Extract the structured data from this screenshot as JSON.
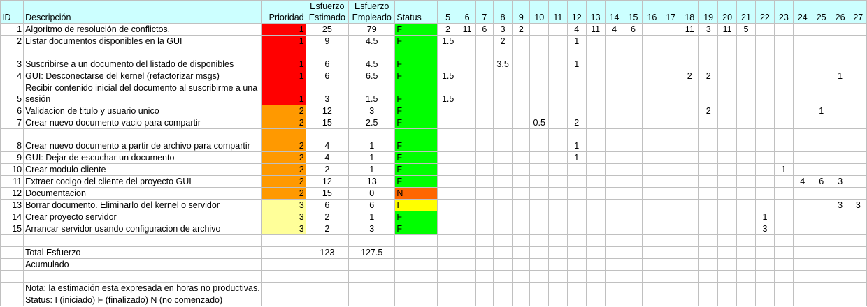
{
  "headers": {
    "id": "ID",
    "descripcion": "Descripción",
    "prioridad": "Prioridad",
    "estimado": "Esfuerzo Estimado",
    "empleado": "Esfuerzo Empleado",
    "status": "Status",
    "days": [
      "5",
      "6",
      "7",
      "8",
      "9",
      "10",
      "11",
      "12",
      "13",
      "14",
      "15",
      "16",
      "17",
      "18",
      "19",
      "20",
      "21",
      "22",
      "23",
      "24",
      "25",
      "26",
      "27"
    ]
  },
  "rows": [
    {
      "id": "1",
      "desc": "Algoritmo de resolución de conflictos.",
      "prio": "1",
      "est": "25",
      "emp": "79",
      "status": "F",
      "days": [
        "2",
        "11",
        "6",
        "3",
        "2",
        "",
        "",
        "4",
        "11",
        "4",
        "6",
        "",
        "",
        "11",
        "3",
        "11",
        "5",
        "",
        "",
        "",
        "",
        "",
        ""
      ]
    },
    {
      "id": "2",
      "desc": "Listar documentos disponibles en la GUI",
      "prio": "1",
      "est": "9",
      "emp": "4.5",
      "status": "F",
      "days": [
        "1.5",
        "",
        "",
        "2",
        "",
        "",
        "",
        "1",
        "",
        "",
        "",
        "",
        "",
        "",
        "",
        "",
        "",
        "",
        "",
        "",
        "",
        "",
        ""
      ]
    },
    {
      "id": "3",
      "desc": "Suscribirse a un documento del listado de disponibles",
      "prio": "1",
      "est": "6",
      "emp": "4.5",
      "status": "F",
      "days": [
        "",
        "",
        "",
        "3.5",
        "",
        "",
        "",
        "1",
        "",
        "",
        "",
        "",
        "",
        "",
        "",
        "",
        "",
        "",
        "",
        "",
        "",
        "",
        ""
      ]
    },
    {
      "id": "4",
      "desc": "GUI: Desconectarse del kernel (refactorizar msgs)",
      "prio": "1",
      "est": "6",
      "emp": "6.5",
      "status": "F",
      "days": [
        "1.5",
        "",
        "",
        "",
        "",
        "",
        "",
        "",
        "",
        "",
        "",
        "",
        "",
        "2",
        "2",
        "",
        "",
        "",
        "",
        "",
        "",
        "1",
        ""
      ]
    },
    {
      "id": "5",
      "desc": "Recibir contenido inicial del documento al suscribirme a una sesión",
      "prio": "1",
      "est": "3",
      "emp": "1.5",
      "status": "F",
      "days": [
        "1.5",
        "",
        "",
        "",
        "",
        "",
        "",
        "",
        "",
        "",
        "",
        "",
        "",
        "",
        "",
        "",
        "",
        "",
        "",
        "",
        "",
        "",
        ""
      ]
    },
    {
      "id": "6",
      "desc": "Validacion de titulo y usuario unico",
      "prio": "2",
      "est": "12",
      "emp": "3",
      "status": "F",
      "days": [
        "",
        "",
        "",
        "",
        "",
        "",
        "",
        "",
        "",
        "",
        "",
        "",
        "",
        "",
        "2",
        "",
        "",
        "",
        "",
        "",
        "1",
        "",
        ""
      ]
    },
    {
      "id": "7",
      "desc": "Crear nuevo documento vacio para compartir",
      "prio": "2",
      "est": "15",
      "emp": "2.5",
      "status": "F",
      "days": [
        "",
        "",
        "",
        "",
        "",
        "0.5",
        "",
        "2",
        "",
        "",
        "",
        "",
        "",
        "",
        "",
        "",
        "",
        "",
        "",
        "",
        "",
        "",
        ""
      ]
    },
    {
      "id": "8",
      "desc": "Crear nuevo documento a partir de archivo para compartir",
      "prio": "2",
      "est": "4",
      "emp": "1",
      "status": "F",
      "days": [
        "",
        "",
        "",
        "",
        "",
        "",
        "",
        "1",
        "",
        "",
        "",
        "",
        "",
        "",
        "",
        "",
        "",
        "",
        "",
        "",
        "",
        "",
        ""
      ]
    },
    {
      "id": "9",
      "desc": "GUI: Dejar de escuchar un documento",
      "prio": "2",
      "est": "4",
      "emp": "1",
      "status": "F",
      "days": [
        "",
        "",
        "",
        "",
        "",
        "",
        "",
        "1",
        "",
        "",
        "",
        "",
        "",
        "",
        "",
        "",
        "",
        "",
        "",
        "",
        "",
        "",
        ""
      ]
    },
    {
      "id": "10",
      "desc": "Crear modulo cliente",
      "prio": "2",
      "est": "2",
      "emp": "1",
      "status": "F",
      "days": [
        "",
        "",
        "",
        "",
        "",
        "",
        "",
        "",
        "",
        "",
        "",
        "",
        "",
        "",
        "",
        "",
        "",
        "",
        "1",
        "",
        "",
        "",
        ""
      ]
    },
    {
      "id": "11",
      "desc": "Extraer codigo del cliente del proyecto GUI",
      "prio": "2",
      "est": "12",
      "emp": "13",
      "status": "F",
      "days": [
        "",
        "",
        "",
        "",
        "",
        "",
        "",
        "",
        "",
        "",
        "",
        "",
        "",
        "",
        "",
        "",
        "",
        "",
        "",
        "4",
        "6",
        "3",
        ""
      ]
    },
    {
      "id": "12",
      "desc": "Documentacion",
      "prio": "2",
      "est": "15",
      "emp": "0",
      "status": "N",
      "days": [
        "",
        "",
        "",
        "",
        "",
        "",
        "",
        "",
        "",
        "",
        "",
        "",
        "",
        "",
        "",
        "",
        "",
        "",
        "",
        "",
        "",
        "",
        ""
      ]
    },
    {
      "id": "13",
      "desc": "Borrar documento. Eliminarlo del kernel o servidor",
      "prio": "3",
      "est": "6",
      "emp": "6",
      "status": "I",
      "days": [
        "",
        "",
        "",
        "",
        "",
        "",
        "",
        "",
        "",
        "",
        "",
        "",
        "",
        "",
        "",
        "",
        "",
        "",
        "",
        "",
        "",
        "3",
        "3"
      ]
    },
    {
      "id": "14",
      "desc": "Crear proyecto servidor",
      "prio": "3",
      "est": "2",
      "emp": "1",
      "status": "F",
      "days": [
        "",
        "",
        "",
        "",
        "",
        "",
        "",
        "",
        "",
        "",
        "",
        "",
        "",
        "",
        "",
        "",
        "",
        "1",
        "",
        "",
        "",
        "",
        ""
      ]
    },
    {
      "id": "15",
      "desc": "Arrancar servidor usando configuracion de archivo",
      "prio": "3",
      "est": "2",
      "emp": "3",
      "status": "F",
      "days": [
        "",
        "",
        "",
        "",
        "",
        "",
        "",
        "",
        "",
        "",
        "",
        "",
        "",
        "",
        "",
        "",
        "",
        "3",
        "",
        "",
        "",
        "",
        ""
      ]
    }
  ],
  "totals": {
    "label": "Total Esfuerzo",
    "est": "123",
    "emp": "127.5",
    "acumulado": "Acumulado"
  },
  "notes": {
    "nota": "Nota: la estimación esta expresada en horas no productivas.",
    "status_legend": "Status: I (iniciado) F (finalizado) N (no comenzado)"
  },
  "colors": {
    "header_bg": "#ccffff",
    "prio_1": "#ff0000",
    "prio_2": "#ff9900",
    "prio_3": "#ffff99",
    "status_F": "#00ff00",
    "status_N": "#ff6600",
    "status_I": "#ffff00"
  }
}
